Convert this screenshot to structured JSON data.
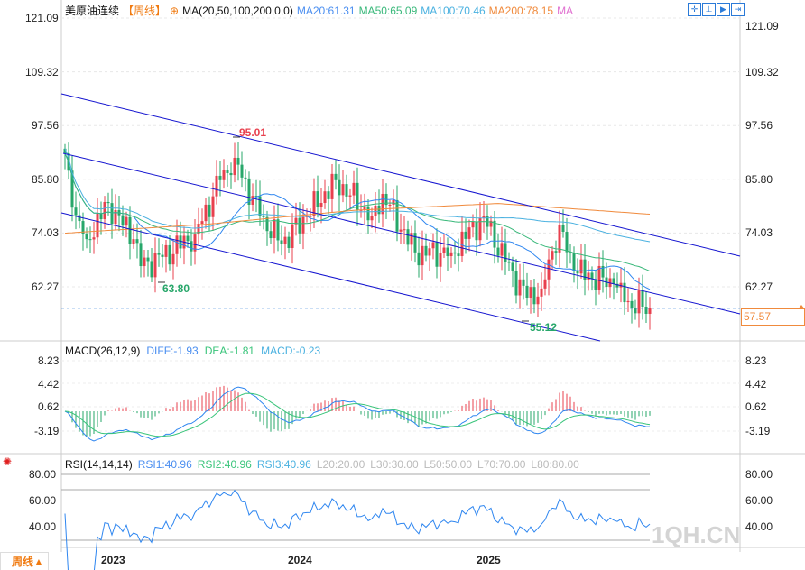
{
  "header": {
    "symbol": "美原油连续",
    "period": "【周线】",
    "ma_label": "MA(20,50,100,200,0,0)",
    "ma20": "MA20:61.31",
    "ma50": "MA50:65.09",
    "ma100": "MA100:70.46",
    "ma200": "MA200:78.15",
    "ma_extra": "MA"
  },
  "colors": {
    "up": "#e8404e",
    "down": "#27a76a",
    "ma20": "#2e86f0",
    "ma50": "#39b87a",
    "ma100": "#4ab1e0",
    "ma200": "#f08a3c",
    "channel": "#1515d0",
    "dea": "#39c47a"
  },
  "price_axis": [
    "121.09",
    "109.32",
    "97.56",
    "85.80",
    "74.03",
    "62.27"
  ],
  "price_axis_values": [
    121.09,
    109.32,
    97.56,
    85.8,
    74.03,
    62.27
  ],
  "current_price": "57.57",
  "annotations": {
    "high": "95.01",
    "low1": "63.80",
    "low2": "55.12"
  },
  "macd": {
    "label": "MACD(26,12,9)",
    "diff": "DIFF:-1.93",
    "dea": "DEA:-1.81",
    "macd": "MACD:-0.23",
    "axis": [
      "8.23",
      "4.42",
      "0.62",
      "-3.19"
    ]
  },
  "rsi": {
    "label": "RSI(14,14,14)",
    "rsi1": "RSI1:40.96",
    "rsi2": "RSI2:40.96",
    "rsi3": "RSI3:40.96",
    "l20": "L20:20.00",
    "l30": "L30:30.00",
    "l50": "L50:50.00",
    "l70": "L70:70.00",
    "l80": "L80:80.00",
    "axis": [
      "80.00",
      "60.00",
      "40.00"
    ]
  },
  "x_axis": [
    "2023",
    "2024",
    "2025"
  ],
  "period_button": "周线▲",
  "watermark": "1QH.CN",
  "chart_data": {
    "type": "candlestick",
    "title": "美原油连续 周线",
    "ylim": [
      55,
      121.09
    ],
    "keypoints_week_close": [
      [
        0,
        91.5
      ],
      [
        2,
        79.6
      ],
      [
        6,
        72.7
      ],
      [
        12,
        80.6
      ],
      [
        19,
        72.7
      ],
      [
        21,
        66.8
      ],
      [
        27,
        68.8
      ],
      [
        36,
        73.7
      ],
      [
        43,
        85.6
      ],
      [
        47,
        90.5
      ],
      [
        54,
        77.7
      ],
      [
        60,
        71.7
      ],
      [
        67,
        77.7
      ],
      [
        75,
        85.6
      ],
      [
        85,
        77.7
      ],
      [
        88,
        82.6
      ],
      [
        97,
        69.8
      ],
      [
        107,
        69.8
      ],
      [
        116,
        77.7
      ],
      [
        122,
        67.8
      ],
      [
        128,
        59.9
      ],
      [
        132,
        61.9
      ],
      [
        137,
        75.7
      ],
      [
        141,
        65.8
      ],
      [
        152,
        62.9
      ],
      [
        155,
        58.9
      ],
      [
        162,
        57.57
      ]
    ],
    "ma200_keypoints": [
      [
        0,
        74
      ],
      [
        40,
        76
      ],
      [
        80,
        79
      ],
      [
        120,
        80.5
      ],
      [
        162,
        78.15
      ]
    ]
  }
}
